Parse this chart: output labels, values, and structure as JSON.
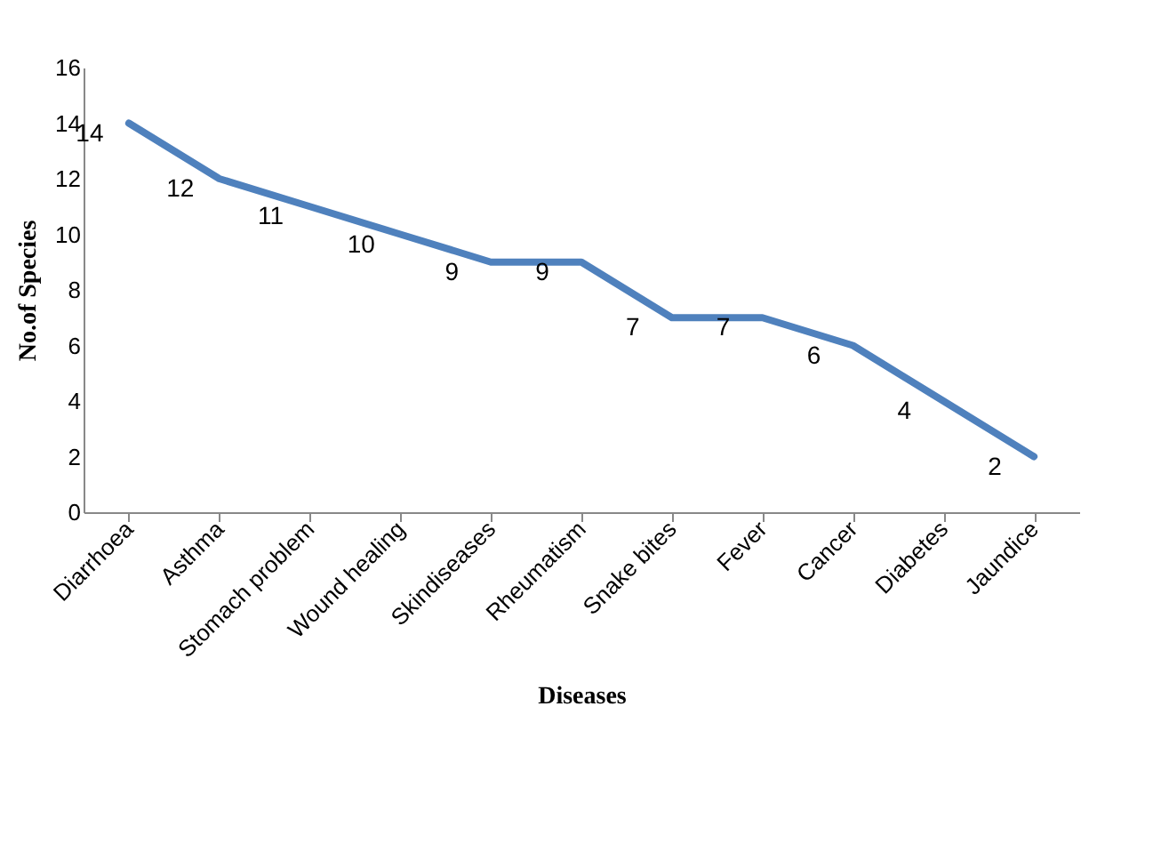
{
  "chart_data": {
    "type": "line",
    "xlabel": "Diseases",
    "ylabel": "No.of Species",
    "categories": [
      "Diarrhoea",
      "Asthma",
      "Stomach problem",
      "Wound healing",
      "Skindiseases",
      "Rheumatism",
      "Snake bites",
      "Fever",
      "Cancer",
      "Diabetes",
      "Jaundice"
    ],
    "series": [
      {
        "color": "#4f81bd",
        "values": [
          14,
          12,
          11,
          10,
          9,
          9,
          7,
          7,
          6,
          4,
          2
        ]
      }
    ],
    "ylim": [
      0,
      16
    ],
    "yticks": [
      0,
      2,
      4,
      6,
      8,
      10,
      12,
      14,
      16
    ],
    "grid": false,
    "legend": false,
    "data_labels": true
  }
}
